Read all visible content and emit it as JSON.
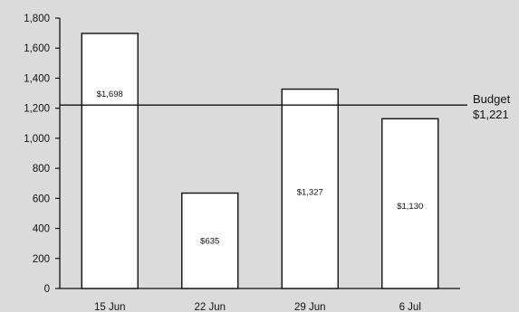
{
  "chart_data": {
    "type": "bar",
    "title": "",
    "xlabel": "",
    "ylabel": "",
    "categories": [
      "15 Jun",
      "22 Jun",
      "29 Jun",
      "6 Jul"
    ],
    "values": [
      1698,
      635,
      1327,
      1130
    ],
    "data_labels": [
      "$1,698",
      "$635",
      "$1,327",
      "$1,130"
    ],
    "ylim": [
      0,
      1800
    ],
    "yticks": [
      0,
      200,
      400,
      600,
      800,
      1000,
      1200,
      1400,
      1600,
      1800
    ],
    "ytick_labels": [
      "0",
      "200",
      "400",
      "600",
      "800",
      "1,000",
      "1,200",
      "1,400",
      "1,600",
      "1,800"
    ],
    "grid": false,
    "legend": "none",
    "reference_line": {
      "value": 1221,
      "label": "Budget",
      "value_label": "$1,221"
    },
    "colors": {
      "background": "#dcdbdc",
      "bar_fill": "#ffffff",
      "bar_stroke": "#111111",
      "axis": "#111111"
    }
  }
}
